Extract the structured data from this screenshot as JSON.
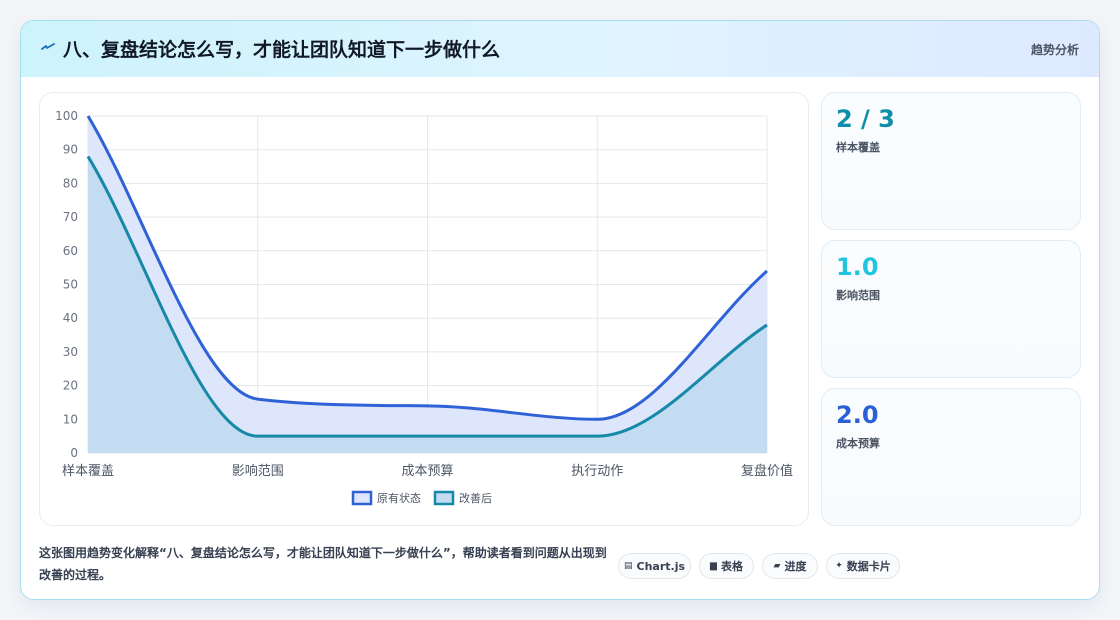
{
  "header": {
    "title": "八、复盘结论怎么写，才能让团队知道下一步做什么",
    "tag": "趋势分析"
  },
  "chart_data": {
    "type": "line",
    "categories": [
      "样本覆盖",
      "影响范围",
      "成本预算",
      "执行动作",
      "复盘价值"
    ],
    "series": [
      {
        "name": "原有状态",
        "values": [
          100,
          16,
          14,
          10,
          54
        ],
        "color": "#2f62d6",
        "fill": "#dde6fb"
      },
      {
        "name": "改善后",
        "values": [
          88,
          5,
          5,
          5,
          38
        ],
        "color": "#1789a8",
        "fill": "#c3dcf2"
      }
    ],
    "ylim": [
      0,
      100
    ],
    "yticks": [
      0,
      10,
      20,
      30,
      40,
      50,
      60,
      70,
      80,
      90,
      100
    ],
    "grid": true,
    "legend": "bottom"
  },
  "stats": [
    {
      "value": "2 / 3",
      "label": "样本覆盖",
      "color": "#0e8ea8"
    },
    {
      "value": "1.0",
      "label": "影响范围",
      "color": "#22c5e0"
    },
    {
      "value": "2.0",
      "label": "成本预算",
      "color": "#2b5fd6"
    }
  ],
  "footer": {
    "description": "这张图用趋势变化解释“八、复盘结论怎么写，才能让团队知道下一步做什么”，帮助读者看到问题从出现到改善的过程。",
    "chips": [
      {
        "icon": "▤",
        "label": "Chart.js"
      },
      {
        "icon": "▆",
        "label": "表格"
      },
      {
        "icon": "▰",
        "label": "进度"
      },
      {
        "icon": "✦",
        "label": "数据卡片"
      }
    ]
  }
}
